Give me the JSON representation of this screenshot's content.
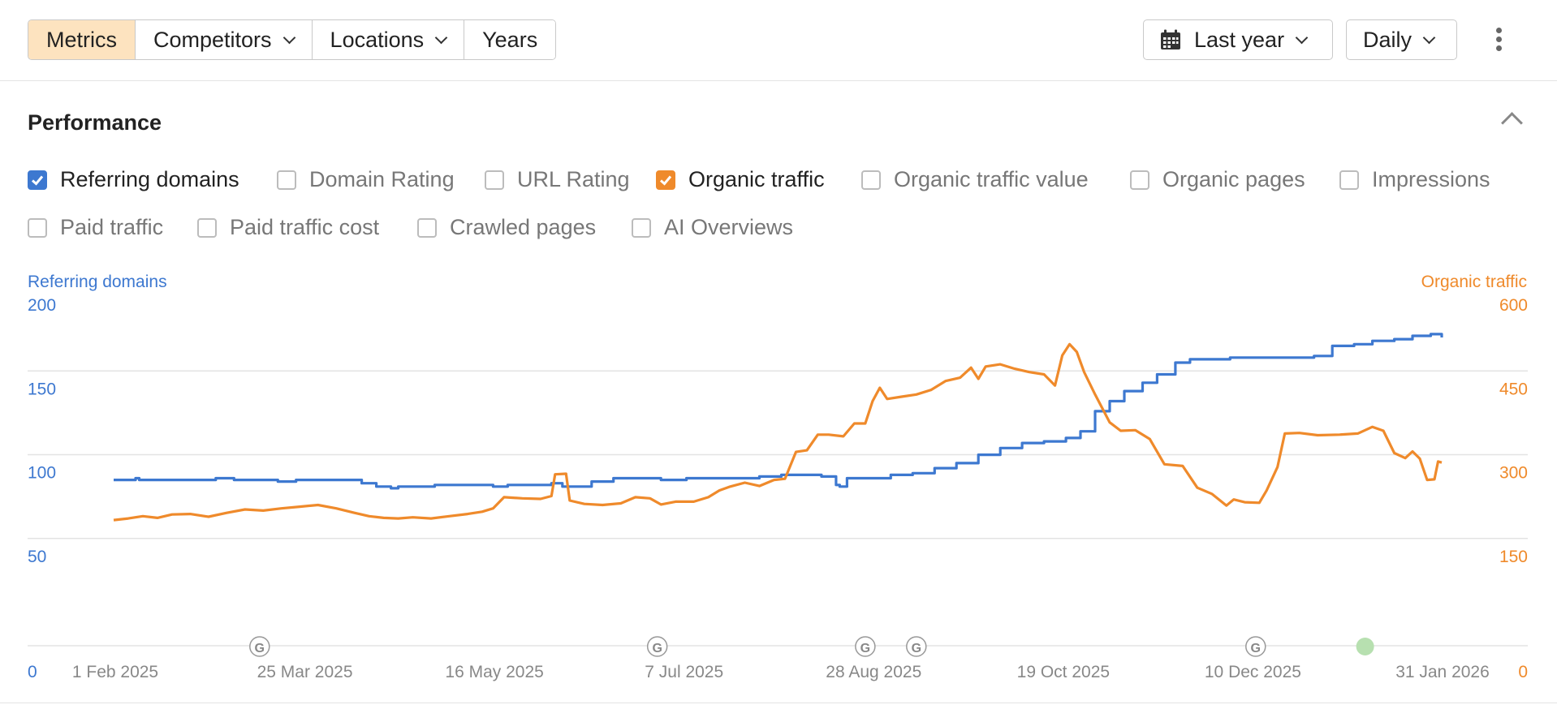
{
  "toolbar": {
    "tabs": [
      {
        "label": "Metrics",
        "active": true
      },
      {
        "label": "Competitors",
        "dropdown": true
      },
      {
        "label": "Locations",
        "dropdown": true
      },
      {
        "label": "Years",
        "dropdown": false
      }
    ],
    "date_range": {
      "label": "Last year",
      "icon": "calendar-icon"
    },
    "granularity": {
      "label": "Daily"
    },
    "more_icon": "kebab-icon"
  },
  "panel": {
    "title": "Performance",
    "collapse_icon": "chevron-up-icon",
    "metrics": [
      {
        "label": "Referring domains",
        "checked": true,
        "color": "#3d78d0"
      },
      {
        "label": "Domain Rating",
        "checked": false
      },
      {
        "label": "URL Rating",
        "checked": false
      },
      {
        "label": "Organic traffic",
        "checked": true,
        "color": "#ef8a2b"
      },
      {
        "label": "Organic traffic value",
        "checked": false
      },
      {
        "label": "Organic pages",
        "checked": false
      },
      {
        "label": "Impressions",
        "checked": false
      },
      {
        "label": "Paid traffic",
        "checked": false
      },
      {
        "label": "Paid traffic cost",
        "checked": false
      },
      {
        "label": "Crawled pages",
        "checked": false
      },
      {
        "label": "AI Overviews",
        "checked": false
      }
    ]
  },
  "chart_data": {
    "type": "line",
    "left_axis": {
      "title": "Referring domains",
      "ticks": [
        0,
        50,
        100,
        150,
        200
      ],
      "range": [
        0,
        200
      ],
      "color": "#3d78d0"
    },
    "right_axis": {
      "title": "Organic traffic",
      "ticks": [
        0,
        150,
        300,
        450,
        600
      ],
      "range": [
        0,
        600
      ],
      "color": "#ef8a2b"
    },
    "x_ticks": [
      "1 Feb 2025",
      "25 Mar 2025",
      "16 May 2025",
      "7 Jul 2025",
      "28 Aug 2025",
      "19 Oct 2025",
      "10 Dec 2025",
      "31 Jan 2026"
    ],
    "google_updates": [
      "2025-03-13",
      "2025-06-30",
      "2025-08-26",
      "2025-09-09",
      "2025-12-11"
    ],
    "google_marker_label": "G",
    "annotations": [
      {
        "date": "2026-01-10",
        "color": "#b7e0b0"
      }
    ],
    "grid": true,
    "series": [
      {
        "name": "Referring domains",
        "axis": "left",
        "color": "#3d78d0",
        "points": [
          [
            "2025-02-01",
            99
          ],
          [
            "2025-02-06",
            99
          ],
          [
            "2025-02-07",
            100
          ],
          [
            "2025-02-08",
            99
          ],
          [
            "2025-02-28",
            99
          ],
          [
            "2025-03-01",
            100
          ],
          [
            "2025-03-05",
            100
          ],
          [
            "2025-03-06",
            99
          ],
          [
            "2025-03-17",
            99
          ],
          [
            "2025-03-18",
            98
          ],
          [
            "2025-03-22",
            98
          ],
          [
            "2025-03-23",
            99
          ],
          [
            "2025-04-08",
            99
          ],
          [
            "2025-04-10",
            97
          ],
          [
            "2025-04-14",
            95
          ],
          [
            "2025-04-18",
            94
          ],
          [
            "2025-04-20",
            95
          ],
          [
            "2025-04-26",
            95
          ],
          [
            "2025-04-30",
            96
          ],
          [
            "2025-05-06",
            96
          ],
          [
            "2025-05-11",
            96
          ],
          [
            "2025-05-16",
            95
          ],
          [
            "2025-05-20",
            96
          ],
          [
            "2025-05-26",
            96
          ],
          [
            "2025-06-01",
            97
          ],
          [
            "2025-06-04",
            95
          ],
          [
            "2025-06-07",
            95
          ],
          [
            "2025-06-12",
            98
          ],
          [
            "2025-06-18",
            100
          ],
          [
            "2025-06-24",
            100
          ],
          [
            "2025-07-01",
            99
          ],
          [
            "2025-07-08",
            100
          ],
          [
            "2025-07-14",
            100
          ],
          [
            "2025-07-20",
            100
          ],
          [
            "2025-07-28",
            101
          ],
          [
            "2025-08-03",
            102
          ],
          [
            "2025-08-09",
            102
          ],
          [
            "2025-08-14",
            101
          ],
          [
            "2025-08-18",
            96
          ],
          [
            "2025-08-19",
            95
          ],
          [
            "2025-08-21",
            100
          ],
          [
            "2025-08-27",
            100
          ],
          [
            "2025-09-02",
            102
          ],
          [
            "2025-09-08",
            103
          ],
          [
            "2025-09-14",
            106
          ],
          [
            "2025-09-20",
            109
          ],
          [
            "2025-09-26",
            114
          ],
          [
            "2025-10-02",
            118
          ],
          [
            "2025-10-08",
            121
          ],
          [
            "2025-10-14",
            122
          ],
          [
            "2025-10-20",
            124
          ],
          [
            "2025-10-24",
            128
          ],
          [
            "2025-10-28",
            140
          ],
          [
            "2025-11-01",
            146
          ],
          [
            "2025-11-05",
            152
          ],
          [
            "2025-11-10",
            157
          ],
          [
            "2025-11-14",
            162
          ],
          [
            "2025-11-19",
            169
          ],
          [
            "2025-11-23",
            171
          ],
          [
            "2025-11-28",
            171
          ],
          [
            "2025-12-04",
            172
          ],
          [
            "2025-12-10",
            172
          ],
          [
            "2025-12-17",
            172
          ],
          [
            "2025-12-23",
            172
          ],
          [
            "2025-12-27",
            173
          ],
          [
            "2026-01-01",
            179
          ],
          [
            "2026-01-07",
            180
          ],
          [
            "2026-01-12",
            182
          ],
          [
            "2026-01-18",
            183
          ],
          [
            "2026-01-23",
            185
          ],
          [
            "2026-01-28",
            186
          ],
          [
            "2026-01-31",
            184
          ]
        ]
      },
      {
        "name": "Organic traffic",
        "axis": "right",
        "color": "#ef8a2b",
        "points": [
          [
            "2025-02-01",
            225
          ],
          [
            "2025-02-05",
            228
          ],
          [
            "2025-02-09",
            232
          ],
          [
            "2025-02-13",
            229
          ],
          [
            "2025-02-17",
            235
          ],
          [
            "2025-02-22",
            236
          ],
          [
            "2025-02-27",
            231
          ],
          [
            "2025-03-04",
            238
          ],
          [
            "2025-03-09",
            244
          ],
          [
            "2025-03-14",
            242
          ],
          [
            "2025-03-19",
            246
          ],
          [
            "2025-03-24",
            249
          ],
          [
            "2025-03-29",
            252
          ],
          [
            "2025-04-03",
            246
          ],
          [
            "2025-04-08",
            238
          ],
          [
            "2025-04-12",
            232
          ],
          [
            "2025-04-16",
            229
          ],
          [
            "2025-04-20",
            228
          ],
          [
            "2025-04-24",
            230
          ],
          [
            "2025-04-29",
            228
          ],
          [
            "2025-05-04",
            232
          ],
          [
            "2025-05-09",
            236
          ],
          [
            "2025-05-13",
            240
          ],
          [
            "2025-05-16",
            246
          ],
          [
            "2025-05-19",
            266
          ],
          [
            "2025-05-24",
            264
          ],
          [
            "2025-05-29",
            263
          ],
          [
            "2025-06-01",
            268
          ],
          [
            "2025-06-02",
            307
          ],
          [
            "2025-06-05",
            308
          ],
          [
            "2025-06-06",
            260
          ],
          [
            "2025-06-10",
            254
          ],
          [
            "2025-06-15",
            252
          ],
          [
            "2025-06-20",
            255
          ],
          [
            "2025-06-24",
            266
          ],
          [
            "2025-06-28",
            264
          ],
          [
            "2025-07-01",
            253
          ],
          [
            "2025-07-05",
            258
          ],
          [
            "2025-07-10",
            258
          ],
          [
            "2025-07-14",
            266
          ],
          [
            "2025-07-17",
            278
          ],
          [
            "2025-07-20",
            285
          ],
          [
            "2025-07-24",
            292
          ],
          [
            "2025-07-28",
            286
          ],
          [
            "2025-08-01",
            297
          ],
          [
            "2025-08-04",
            299
          ],
          [
            "2025-08-07",
            347
          ],
          [
            "2025-08-10",
            350
          ],
          [
            "2025-08-13",
            378
          ],
          [
            "2025-08-16",
            378
          ],
          [
            "2025-08-20",
            375
          ],
          [
            "2025-08-23",
            398
          ],
          [
            "2025-08-26",
            398
          ],
          [
            "2025-08-28",
            438
          ],
          [
            "2025-08-30",
            462
          ],
          [
            "2025-09-01",
            442
          ],
          [
            "2025-09-05",
            446
          ],
          [
            "2025-09-09",
            450
          ],
          [
            "2025-09-13",
            458
          ],
          [
            "2025-09-17",
            474
          ],
          [
            "2025-09-21",
            480
          ],
          [
            "2025-09-24",
            498
          ],
          [
            "2025-09-26",
            478
          ],
          [
            "2025-09-28",
            500
          ],
          [
            "2025-10-02",
            504
          ],
          [
            "2025-10-06",
            496
          ],
          [
            "2025-10-10",
            490
          ],
          [
            "2025-10-14",
            486
          ],
          [
            "2025-10-17",
            466
          ],
          [
            "2025-10-19",
            520
          ],
          [
            "2025-10-21",
            540
          ],
          [
            "2025-10-23",
            526
          ],
          [
            "2025-10-25",
            490
          ],
          [
            "2025-10-28",
            450
          ],
          [
            "2025-11-01",
            400
          ],
          [
            "2025-11-04",
            385
          ],
          [
            "2025-11-08",
            386
          ],
          [
            "2025-11-12",
            370
          ],
          [
            "2025-11-16",
            325
          ],
          [
            "2025-11-21",
            322
          ],
          [
            "2025-11-25",
            283
          ],
          [
            "2025-11-29",
            272
          ],
          [
            "2025-12-03",
            251
          ],
          [
            "2025-12-05",
            262
          ],
          [
            "2025-12-08",
            257
          ],
          [
            "2025-12-12",
            256
          ],
          [
            "2025-12-14",
            278
          ],
          [
            "2025-12-17",
            320
          ],
          [
            "2025-12-19",
            380
          ],
          [
            "2025-12-23",
            381
          ],
          [
            "2025-12-28",
            377
          ],
          [
            "2026-01-03",
            378
          ],
          [
            "2026-01-08",
            380
          ],
          [
            "2026-01-12",
            392
          ],
          [
            "2026-01-15",
            385
          ],
          [
            "2026-01-18",
            345
          ],
          [
            "2026-01-21",
            336
          ],
          [
            "2026-01-23",
            348
          ],
          [
            "2026-01-25",
            335
          ],
          [
            "2026-01-27",
            297
          ],
          [
            "2026-01-29",
            298
          ],
          [
            "2026-01-30",
            330
          ],
          [
            "2026-01-31",
            328
          ]
        ]
      }
    ]
  }
}
